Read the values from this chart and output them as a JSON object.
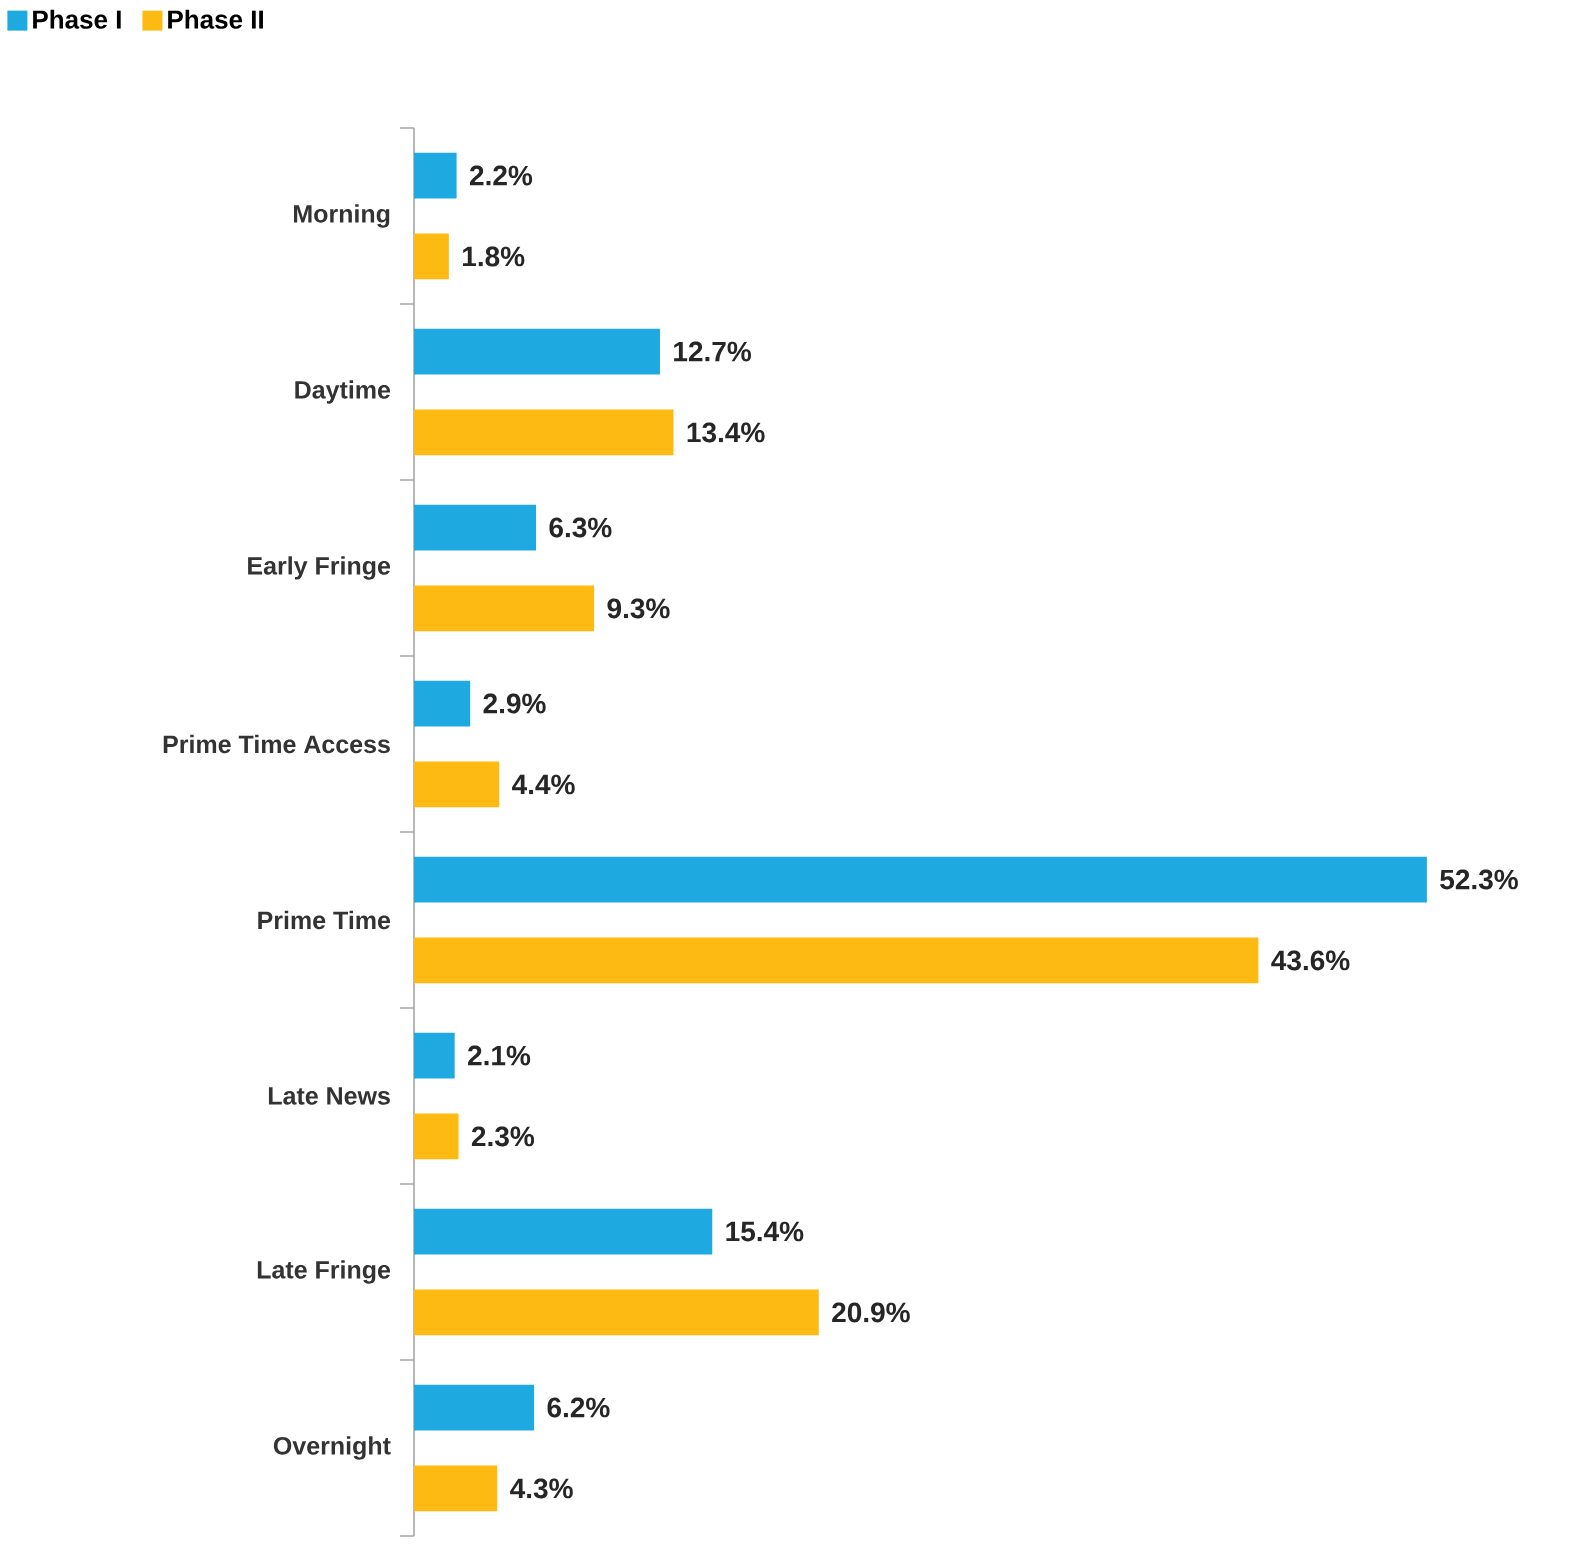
{
  "chart_data": {
    "type": "bar",
    "orientation": "horizontal",
    "legend": "top left",
    "tick_labels": "y",
    "categories": [
      "Morning",
      "Daytime",
      "Early Fringe",
      "Prime Time Access",
      "Prime Time",
      "Late News",
      "Late Fringe",
      "Overnight"
    ],
    "series": [
      {
        "name": "Phase I",
        "color": "#1fa9e1",
        "values": [
          2.2,
          12.7,
          6.3,
          2.9,
          52.3,
          2.1,
          15.4,
          6.2
        ],
        "value_labels": [
          "2.2%",
          "12.7%",
          "6.3%",
          "2.9%",
          "52.3%",
          "2.1%",
          "15.4%",
          "6.2%"
        ]
      },
      {
        "name": "Phase II",
        "color": "#fdba12",
        "values": [
          1.8,
          13.4,
          9.3,
          4.4,
          43.6,
          2.3,
          20.9,
          4.3
        ],
        "value_labels": [
          "1.8%",
          "13.4%",
          "9.3%",
          "4.4%",
          "43.6%",
          "2.3%",
          "20.9%",
          "4.3%"
        ]
      }
    ]
  }
}
